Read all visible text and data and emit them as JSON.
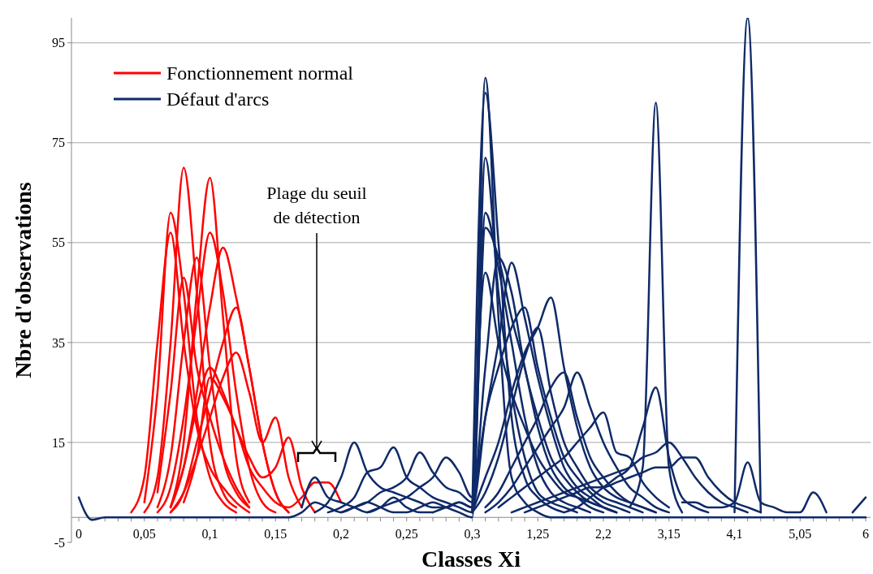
{
  "chart_data": {
    "type": "line",
    "xlabel": "Classes Xi",
    "ylabel": "Nbre d'observations",
    "categories": [
      "0",
      null,
      null,
      null,
      null,
      "0,05",
      null,
      null,
      null,
      null,
      "0,1",
      null,
      null,
      null,
      null,
      "0,15",
      null,
      null,
      null,
      null,
      "0,2",
      null,
      null,
      null,
      null,
      "0,25",
      null,
      null,
      null,
      null,
      "0,3",
      null,
      null,
      null,
      null,
      "1,25",
      null,
      null,
      null,
      null,
      "2,2",
      null,
      null,
      null,
      null,
      "3,15",
      null,
      null,
      null,
      null,
      "4,1",
      null,
      null,
      null,
      null,
      "5,05",
      null,
      null,
      null,
      null,
      "6"
    ],
    "ylim": [
      -5,
      100
    ],
    "yticks": [
      -5,
      15,
      35,
      55,
      75,
      95
    ],
    "grid": "y",
    "legend": "top left",
    "annotations": [
      "Plage du seuil de détection"
    ],
    "series": [
      {
        "name": "Fonctionnement normal",
        "color": "#ff0000",
        "values": [
          null,
          null,
          null,
          null,
          null,
          1,
          8,
          35,
          70,
          45,
          15,
          5,
          2,
          null,
          null,
          null,
          null,
          null,
          null,
          null,
          null,
          null,
          null,
          null,
          null,
          null,
          null,
          null,
          null,
          null,
          null,
          null,
          null,
          null,
          null,
          null,
          null,
          null,
          null,
          null,
          null,
          null,
          null,
          null,
          null,
          null,
          null,
          null,
          null,
          null,
          null,
          null,
          null,
          null,
          null,
          null,
          null,
          null,
          null,
          null,
          null
        ]
      },
      {
        "color": "#ff0000",
        "values": [
          null,
          null,
          null,
          null,
          null,
          null,
          null,
          2,
          15,
          45,
          68,
          40,
          12,
          3,
          null,
          null,
          null,
          null,
          null,
          null,
          null,
          null,
          null,
          null,
          null,
          null,
          null,
          null,
          null,
          null,
          null,
          null,
          null,
          null,
          null,
          null,
          null,
          null,
          null,
          null,
          null,
          null,
          null,
          null,
          null,
          null,
          null,
          null,
          null,
          null,
          null,
          null,
          null,
          null,
          null,
          null,
          null,
          null,
          null,
          null,
          null
        ]
      },
      {
        "color": "#ff0000",
        "values": [
          null,
          null,
          null,
          null,
          null,
          3,
          25,
          61,
          45,
          20,
          8,
          3,
          1,
          null,
          null,
          null,
          null,
          null,
          null,
          null,
          null,
          null,
          null,
          null,
          null,
          null,
          null,
          null,
          null,
          null,
          null,
          null,
          null,
          null,
          null,
          null,
          null,
          null,
          null,
          null,
          null,
          null,
          null,
          null,
          null,
          null,
          null,
          null,
          null,
          null,
          null,
          null,
          null,
          null,
          null,
          null,
          null,
          null,
          null,
          null,
          null
        ]
      },
      {
        "color": "#ff0000",
        "values": [
          null,
          null,
          null,
          null,
          1,
          8,
          35,
          57,
          35,
          18,
          10,
          6,
          3,
          1,
          null,
          null,
          null,
          null,
          null,
          null,
          null,
          null,
          null,
          null,
          null,
          null,
          null,
          null,
          null,
          null,
          null,
          null,
          null,
          null,
          null,
          null,
          null,
          null,
          null,
          null,
          null,
          null,
          null,
          null,
          null,
          null,
          null,
          null,
          null,
          null,
          null,
          null,
          null,
          null,
          null,
          null,
          null,
          null,
          null,
          null,
          null
        ]
      },
      {
        "color": "#ff0000",
        "values": [
          null,
          null,
          null,
          null,
          null,
          null,
          1,
          6,
          20,
          40,
          57,
          45,
          25,
          10,
          3,
          1,
          null,
          null,
          null,
          null,
          null,
          null,
          null,
          null,
          null,
          null,
          null,
          null,
          null,
          null,
          null,
          null,
          null,
          null,
          null,
          null,
          null,
          null,
          null,
          null,
          null,
          null,
          null,
          null,
          null,
          null,
          null,
          null,
          null,
          null,
          null,
          null,
          null,
          null,
          null,
          null,
          null,
          null,
          null,
          null,
          null
        ]
      },
      {
        "color": "#ff0000",
        "values": [
          null,
          null,
          null,
          null,
          null,
          null,
          null,
          2,
          10,
          25,
          42,
          54,
          44,
          30,
          15,
          5,
          1,
          null,
          null,
          null,
          null,
          null,
          null,
          null,
          null,
          null,
          null,
          null,
          null,
          null,
          null,
          null,
          null,
          null,
          null,
          null,
          null,
          null,
          null,
          null,
          null,
          null,
          null,
          null,
          null,
          null,
          null,
          null,
          null,
          null,
          null,
          null,
          null,
          null,
          null,
          null,
          null,
          null,
          null,
          null,
          null
        ]
      },
      {
        "color": "#ff0000",
        "values": [
          null,
          null,
          null,
          null,
          null,
          null,
          2,
          12,
          35,
          52,
          30,
          12,
          5,
          2,
          null,
          null,
          null,
          null,
          null,
          null,
          null,
          null,
          null,
          null,
          null,
          null,
          null,
          null,
          null,
          null,
          null,
          null,
          null,
          null,
          null,
          null,
          null,
          null,
          null,
          null,
          null,
          null,
          null,
          null,
          null,
          null,
          null,
          null,
          null,
          null,
          null,
          null,
          null,
          null,
          null,
          null,
          null,
          null,
          null,
          null,
          null
        ]
      },
      {
        "color": "#ff0000",
        "values": [
          null,
          null,
          null,
          null,
          null,
          null,
          5,
          25,
          48,
          30,
          20,
          12,
          6,
          2,
          null,
          null,
          null,
          null,
          null,
          null,
          null,
          null,
          null,
          null,
          null,
          null,
          null,
          null,
          null,
          null,
          null,
          null,
          null,
          null,
          null,
          null,
          null,
          null,
          null,
          null,
          null,
          null,
          null,
          null,
          null,
          null,
          null,
          null,
          null,
          null,
          null,
          null,
          null,
          null,
          null,
          null,
          null,
          null,
          null,
          null,
          null
        ]
      },
      {
        "color": "#ff0000",
        "values": [
          null,
          null,
          null,
          null,
          null,
          null,
          null,
          1,
          5,
          15,
          25,
          35,
          42,
          30,
          15,
          5,
          1,
          null,
          null,
          null,
          null,
          null,
          null,
          null,
          null,
          null,
          null,
          null,
          null,
          null,
          null,
          null,
          null,
          null,
          null,
          null,
          null,
          null,
          null,
          null,
          null,
          null,
          null,
          null,
          null,
          null,
          null,
          null,
          null,
          null,
          null,
          null,
          null,
          null,
          null,
          null,
          null,
          null,
          null,
          null,
          null
        ]
      },
      {
        "color": "#ff0000",
        "values": [
          null,
          null,
          null,
          null,
          null,
          null,
          null,
          1,
          5,
          12,
          20,
          28,
          33,
          25,
          15,
          20,
          8,
          2,
          null,
          null,
          null,
          null,
          null,
          null,
          null,
          null,
          null,
          null,
          null,
          null,
          null,
          null,
          null,
          null,
          null,
          null,
          null,
          null,
          null,
          null,
          null,
          null,
          null,
          null,
          null,
          null,
          null,
          null,
          null,
          null,
          null,
          null,
          null,
          null,
          null,
          null,
          null,
          null,
          null,
          null,
          null
        ]
      },
      {
        "color": "#ff0000",
        "values": [
          null,
          null,
          null,
          null,
          null,
          null,
          null,
          2,
          10,
          22,
          30,
          25,
          18,
          12,
          8,
          10,
          16,
          6,
          1,
          null,
          null,
          null,
          null,
          null,
          null,
          null,
          null,
          null,
          null,
          null,
          null,
          null,
          null,
          null,
          null,
          null,
          null,
          null,
          null,
          null,
          null,
          null,
          null,
          null,
          null,
          null,
          null,
          null,
          null,
          null,
          null,
          null,
          null,
          null,
          null,
          null,
          null,
          null,
          null,
          null,
          null
        ]
      },
      {
        "color": "#ff0000",
        "values": [
          null,
          null,
          null,
          null,
          null,
          null,
          null,
          null,
          3,
          12,
          28,
          24,
          18,
          10,
          6,
          3,
          2,
          4,
          7,
          7,
          3,
          null,
          null,
          null,
          null,
          null,
          null,
          null,
          null,
          null,
          null,
          null,
          null,
          null,
          null,
          null,
          null,
          null,
          null,
          null,
          null,
          null,
          null,
          null,
          null,
          null,
          null,
          null,
          null,
          null,
          null,
          null,
          null,
          null,
          null,
          null,
          null,
          null,
          null,
          null,
          null
        ]
      },
      {
        "color": "#0f2a68",
        "values": [
          null,
          null,
          null,
          null,
          null,
          null,
          null,
          null,
          null,
          null,
          null,
          null,
          null,
          null,
          null,
          null,
          null,
          2,
          8,
          4,
          3,
          2,
          1,
          2,
          4,
          2,
          1,
          1,
          null,
          null,
          1,
          85,
          55,
          20,
          8,
          4,
          2,
          1,
          null,
          null,
          null,
          null,
          null,
          null,
          null,
          null,
          null,
          null,
          null,
          null,
          null,
          null,
          null,
          null,
          null,
          null,
          null,
          null,
          null,
          null,
          null
        ]
      },
      {
        "color": "#0f2a68",
        "values": [
          null,
          null,
          null,
          null,
          null,
          null,
          null,
          null,
          null,
          null,
          null,
          null,
          null,
          null,
          null,
          null,
          null,
          null,
          1,
          3,
          8,
          15,
          9,
          6,
          5,
          4,
          3,
          2,
          2,
          3,
          2,
          72,
          45,
          25,
          12,
          5,
          3,
          2,
          1,
          null,
          null,
          null,
          null,
          null,
          null,
          null,
          null,
          null,
          null,
          null,
          null,
          null,
          null,
          null,
          null,
          null,
          null,
          null,
          null,
          null,
          null
        ]
      },
      {
        "color": "#0f2a68",
        "values": [
          null,
          null,
          null,
          null,
          null,
          null,
          null,
          null,
          null,
          null,
          null,
          null,
          null,
          null,
          null,
          null,
          null,
          null,
          null,
          1,
          2,
          4,
          9,
          10,
          14,
          8,
          6,
          4,
          3,
          2,
          1,
          61,
          50,
          35,
          20,
          10,
          5,
          3,
          2,
          1,
          null,
          null,
          null,
          null,
          null,
          null,
          null,
          null,
          null,
          null,
          null,
          null,
          null,
          null,
          null,
          null,
          null,
          null,
          null,
          null,
          null
        ]
      },
      {
        "color": "#0f2a68",
        "values": [
          null,
          null,
          null,
          null,
          null,
          null,
          null,
          null,
          null,
          null,
          null,
          null,
          null,
          null,
          null,
          null,
          null,
          null,
          null,
          null,
          1,
          2,
          3,
          5,
          6,
          8,
          13,
          9,
          6,
          5,
          3,
          58,
          52,
          40,
          30,
          18,
          10,
          6,
          4,
          2,
          1,
          null,
          null,
          null,
          null,
          null,
          null,
          null,
          null,
          null,
          null,
          null,
          null,
          null,
          null,
          null,
          null,
          null,
          null,
          null,
          null
        ]
      },
      {
        "color": "#0f2a68",
        "values": [
          null,
          null,
          null,
          null,
          null,
          null,
          null,
          null,
          null,
          null,
          null,
          null,
          null,
          null,
          null,
          null,
          null,
          null,
          null,
          null,
          null,
          null,
          1,
          2,
          3,
          4,
          6,
          8,
          12,
          9,
          4,
          30,
          52,
          45,
          30,
          20,
          12,
          8,
          5,
          3,
          2,
          1,
          null,
          null,
          null,
          null,
          null,
          null,
          null,
          null,
          null,
          null,
          null,
          null,
          null,
          null,
          null,
          null,
          null,
          null,
          null
        ]
      },
      {
        "color": "#0f2a68",
        "values": [
          null,
          null,
          null,
          null,
          null,
          null,
          null,
          null,
          null,
          null,
          null,
          null,
          null,
          null,
          null,
          null,
          null,
          null,
          null,
          null,
          null,
          null,
          null,
          null,
          null,
          null,
          null,
          1,
          2,
          3,
          2,
          20,
          35,
          51,
          40,
          28,
          18,
          10,
          6,
          4,
          2,
          1,
          null,
          null,
          null,
          null,
          null,
          null,
          null,
          null,
          null,
          null,
          null,
          null,
          null,
          null,
          null,
          null,
          null,
          null,
          null
        ]
      },
      {
        "color": "#0f2a68",
        "values": [
          null,
          null,
          null,
          null,
          null,
          null,
          null,
          null,
          null,
          null,
          null,
          null,
          null,
          null,
          null,
          null,
          null,
          null,
          null,
          null,
          null,
          null,
          null,
          null,
          null,
          null,
          null,
          null,
          null,
          null,
          1,
          49,
          35,
          25,
          18,
          12,
          8,
          5,
          4,
          3,
          2,
          1,
          null,
          null,
          null,
          null,
          null,
          null,
          null,
          null,
          null,
          null,
          null,
          null,
          null,
          null,
          null,
          null,
          null,
          null,
          null
        ]
      },
      {
        "color": "#0f2a68",
        "values": [
          null,
          null,
          null,
          null,
          null,
          null,
          null,
          null,
          null,
          null,
          null,
          null,
          null,
          null,
          null,
          null,
          null,
          null,
          null,
          null,
          null,
          null,
          null,
          null,
          null,
          null,
          null,
          null,
          null,
          null,
          1,
          8,
          15,
          25,
          33,
          38,
          44,
          30,
          18,
          10,
          6,
          4,
          3,
          2,
          1,
          null,
          null,
          null,
          null,
          null,
          null,
          null,
          null,
          null,
          null,
          null,
          null,
          null,
          null,
          null,
          null
        ]
      },
      {
        "color": "#0f2a68",
        "values": [
          null,
          null,
          null,
          null,
          null,
          null,
          null,
          null,
          null,
          null,
          null,
          null,
          null,
          null,
          null,
          null,
          null,
          null,
          null,
          null,
          null,
          null,
          null,
          null,
          null,
          null,
          null,
          null,
          null,
          null,
          1,
          20,
          30,
          38,
          42,
          30,
          20,
          12,
          8,
          5,
          3,
          2,
          1,
          null,
          null,
          null,
          null,
          null,
          null,
          null,
          null,
          null,
          null,
          null,
          null,
          null,
          null,
          null,
          null,
          null,
          null
        ]
      },
      {
        "color": "#0f2a68",
        "values": [
          null,
          null,
          null,
          null,
          null,
          null,
          null,
          null,
          null,
          null,
          null,
          null,
          null,
          null,
          null,
          null,
          null,
          null,
          null,
          null,
          null,
          null,
          null,
          null,
          null,
          null,
          null,
          null,
          null,
          null,
          1,
          5,
          12,
          22,
          32,
          38,
          25,
          15,
          10,
          6,
          4,
          3,
          2,
          1,
          null,
          null,
          null,
          null,
          null,
          null,
          null,
          null,
          null,
          null,
          null,
          null,
          null,
          null,
          null,
          null,
          null
        ]
      },
      {
        "color": "#0f2a68",
        "values": [
          null,
          null,
          null,
          null,
          null,
          null,
          null,
          null,
          null,
          null,
          null,
          null,
          null,
          null,
          null,
          null,
          null,
          null,
          null,
          null,
          null,
          null,
          null,
          null,
          null,
          null,
          null,
          null,
          null,
          null,
          null,
          2,
          5,
          10,
          15,
          20,
          26,
          29,
          20,
          12,
          8,
          5,
          3,
          2,
          1,
          null,
          null,
          null,
          null,
          null,
          null,
          null,
          null,
          null,
          null,
          null,
          null,
          null,
          null,
          null,
          null
        ]
      },
      {
        "color": "#0f2a68",
        "values": [
          null,
          null,
          null,
          null,
          null,
          null,
          null,
          null,
          null,
          null,
          null,
          null,
          null,
          null,
          null,
          null,
          null,
          null,
          null,
          null,
          null,
          null,
          null,
          null,
          null,
          null,
          null,
          null,
          null,
          null,
          null,
          1,
          3,
          6,
          10,
          14,
          18,
          22,
          29,
          22,
          15,
          10,
          6,
          4,
          2,
          1,
          null,
          null,
          null,
          null,
          null,
          null,
          null,
          null,
          null,
          null,
          null,
          null,
          null,
          null,
          null
        ]
      },
      {
        "color": "#0f2a68",
        "values": [
          null,
          null,
          null,
          null,
          null,
          null,
          null,
          null,
          null,
          null,
          null,
          null,
          null,
          null,
          null,
          null,
          null,
          null,
          null,
          null,
          null,
          null,
          null,
          null,
          null,
          null,
          null,
          null,
          null,
          null,
          null,
          null,
          2,
          4,
          6,
          8,
          10,
          12,
          15,
          18,
          21,
          13,
          12,
          7,
          4,
          2,
          null,
          null,
          null,
          null,
          null,
          null,
          null,
          null,
          null,
          null,
          null,
          null,
          null,
          null,
          null
        ]
      },
      {
        "color": "#0f2a68",
        "values": [
          null,
          null,
          null,
          null,
          null,
          null,
          null,
          null,
          null,
          null,
          null,
          null,
          null,
          null,
          null,
          null,
          null,
          null,
          null,
          null,
          null,
          null,
          null,
          null,
          null,
          null,
          null,
          null,
          null,
          null,
          null,
          null,
          null,
          null,
          null,
          null,
          null,
          1,
          2,
          4,
          6,
          8,
          10,
          18,
          26,
          12,
          4,
          2,
          1,
          null,
          null,
          null,
          null,
          null,
          null,
          null,
          null,
          null,
          null,
          null,
          null
        ]
      },
      {
        "color": "#0f2a68",
        "values": [
          null,
          null,
          null,
          null,
          null,
          null,
          null,
          null,
          null,
          null,
          null,
          null,
          null,
          null,
          null,
          null,
          null,
          null,
          null,
          null,
          null,
          null,
          null,
          null,
          null,
          null,
          null,
          null,
          null,
          null,
          null,
          null,
          null,
          null,
          null,
          null,
          null,
          null,
          null,
          null,
          null,
          null,
          2,
          10,
          83,
          10,
          1,
          null,
          null,
          null,
          null,
          null,
          null,
          null,
          null,
          null,
          null,
          null,
          null,
          null,
          null
        ]
      },
      {
        "color": "#0f2a68",
        "values": [
          null,
          null,
          null,
          null,
          null,
          null,
          null,
          null,
          null,
          null,
          null,
          null,
          null,
          null,
          null,
          null,
          null,
          null,
          null,
          null,
          null,
          null,
          null,
          null,
          null,
          null,
          null,
          null,
          null,
          null,
          null,
          null,
          null,
          1,
          2,
          3,
          4,
          5,
          6,
          7,
          8,
          9,
          10,
          12,
          13,
          15,
          12,
          8,
          5,
          3,
          2,
          1,
          null,
          null,
          null,
          null,
          null,
          null,
          null,
          null,
          null
        ]
      },
      {
        "color": "#0f2a68",
        "values": [
          null,
          null,
          null,
          null,
          null,
          null,
          null,
          null,
          null,
          null,
          null,
          null,
          null,
          null,
          null,
          null,
          null,
          null,
          null,
          null,
          null,
          null,
          null,
          null,
          null,
          null,
          null,
          null,
          null,
          null,
          null,
          null,
          null,
          null,
          1,
          2,
          3,
          4,
          5,
          6,
          6,
          7,
          8,
          9,
          10,
          10,
          12,
          12,
          8,
          5,
          3,
          2,
          1,
          null,
          null,
          null,
          null,
          null,
          null,
          null,
          null
        ]
      },
      {
        "color": "#0f2a68",
        "values": [
          null,
          null,
          null,
          null,
          null,
          null,
          null,
          null,
          null,
          null,
          null,
          null,
          null,
          null,
          null,
          null,
          null,
          null,
          null,
          null,
          null,
          null,
          null,
          null,
          null,
          null,
          null,
          null,
          null,
          null,
          null,
          null,
          null,
          null,
          null,
          null,
          null,
          null,
          null,
          null,
          null,
          null,
          null,
          null,
          null,
          null,
          null,
          null,
          null,
          null,
          1,
          100,
          1,
          null,
          null,
          null,
          null,
          null,
          null,
          null,
          null
        ]
      },
      {
        "color": "#0f2a68",
        "values": [
          null,
          null,
          null,
          null,
          null,
          null,
          null,
          null,
          null,
          null,
          null,
          null,
          null,
          null,
          null,
          null,
          null,
          null,
          null,
          null,
          null,
          null,
          null,
          null,
          null,
          null,
          null,
          null,
          null,
          null,
          null,
          null,
          null,
          null,
          null,
          null,
          null,
          null,
          null,
          null,
          null,
          null,
          null,
          null,
          null,
          null,
          3,
          3,
          2,
          2,
          3,
          11,
          3,
          2,
          1,
          1,
          5,
          1,
          null,
          1,
          4
        ]
      },
      {
        "name": "Défaut d'arcs",
        "color": "#0f2a68",
        "values": [
          4,
          -0.5,
          0,
          0,
          0,
          0,
          0,
          0,
          0,
          0,
          0,
          0,
          0,
          0,
          0,
          0,
          0,
          1,
          3,
          2,
          1,
          2,
          3,
          2,
          1,
          1,
          2,
          3,
          2,
          1,
          0,
          88,
          40,
          8,
          3,
          1,
          0,
          0,
          0,
          0,
          0,
          0,
          0,
          0,
          0,
          0,
          0,
          0,
          0,
          0,
          0,
          0,
          0,
          0,
          0,
          0,
          0,
          0,
          0,
          0,
          0
        ]
      }
    ]
  }
}
